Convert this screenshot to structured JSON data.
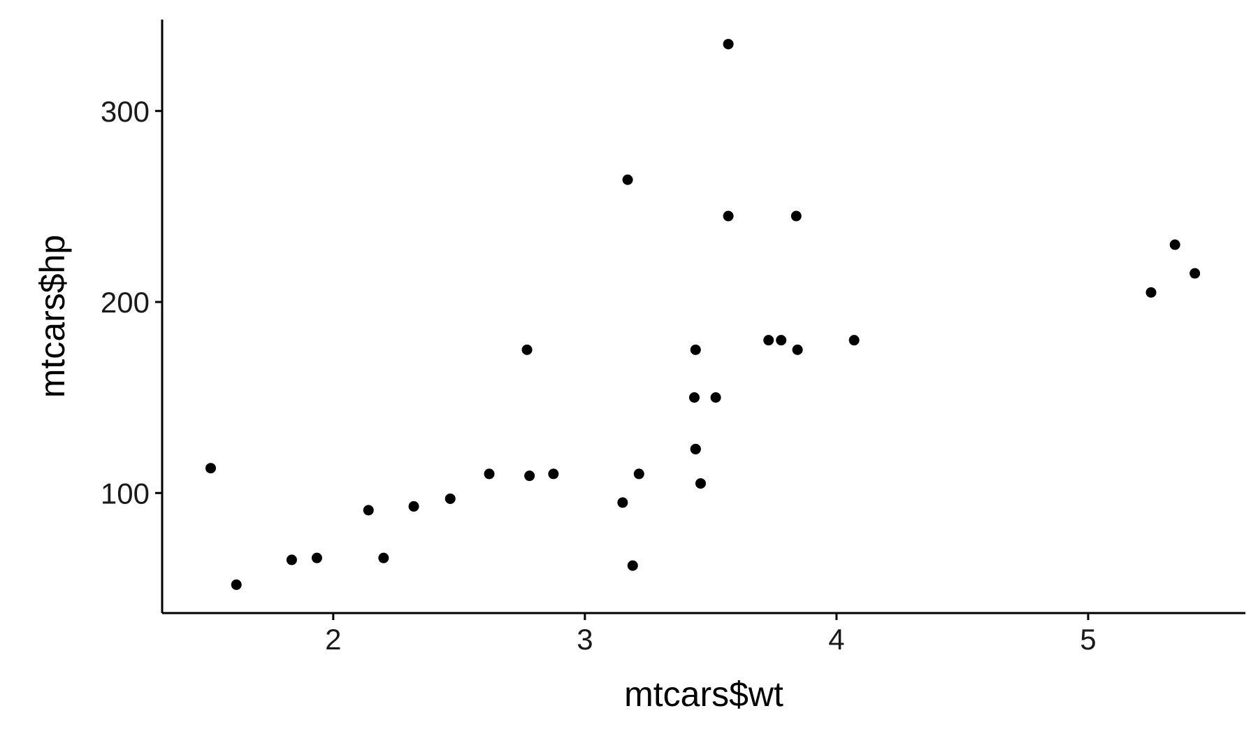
{
  "chart_data": {
    "type": "scatter",
    "title": "",
    "xlabel": "mtcars$wt",
    "ylabel": "mtcars$hp",
    "xlim": [
      1.32,
      5.625
    ],
    "ylim": [
      37.15,
      347.85
    ],
    "x_ticks": [
      2,
      3,
      4,
      5
    ],
    "y_ticks": [
      100,
      200,
      300
    ],
    "x_tick_labels": [
      "2",
      "3",
      "4",
      "5"
    ],
    "y_tick_labels": [
      "100",
      "200",
      "300"
    ],
    "grid": false,
    "legend": "none",
    "point_color": "#000000",
    "points": [
      {
        "x": 2.62,
        "y": 110
      },
      {
        "x": 2.875,
        "y": 110
      },
      {
        "x": 2.32,
        "y": 93
      },
      {
        "x": 3.215,
        "y": 110
      },
      {
        "x": 3.44,
        "y": 175
      },
      {
        "x": 3.46,
        "y": 105
      },
      {
        "x": 3.57,
        "y": 245
      },
      {
        "x": 3.19,
        "y": 62
      },
      {
        "x": 3.15,
        "y": 95
      },
      {
        "x": 3.44,
        "y": 123
      },
      {
        "x": 3.44,
        "y": 123
      },
      {
        "x": 4.07,
        "y": 180
      },
      {
        "x": 3.73,
        "y": 180
      },
      {
        "x": 3.78,
        "y": 180
      },
      {
        "x": 5.25,
        "y": 205
      },
      {
        "x": 5.424,
        "y": 215
      },
      {
        "x": 5.345,
        "y": 230
      },
      {
        "x": 2.2,
        "y": 66
      },
      {
        "x": 1.615,
        "y": 52
      },
      {
        "x": 1.835,
        "y": 65
      },
      {
        "x": 2.465,
        "y": 97
      },
      {
        "x": 3.52,
        "y": 150
      },
      {
        "x": 3.435,
        "y": 150
      },
      {
        "x": 3.84,
        "y": 245
      },
      {
        "x": 3.845,
        "y": 175
      },
      {
        "x": 1.935,
        "y": 66
      },
      {
        "x": 2.14,
        "y": 91
      },
      {
        "x": 1.513,
        "y": 113
      },
      {
        "x": 3.17,
        "y": 264
      },
      {
        "x": 2.77,
        "y": 175
      },
      {
        "x": 3.57,
        "y": 335
      },
      {
        "x": 2.78,
        "y": 109
      }
    ]
  }
}
